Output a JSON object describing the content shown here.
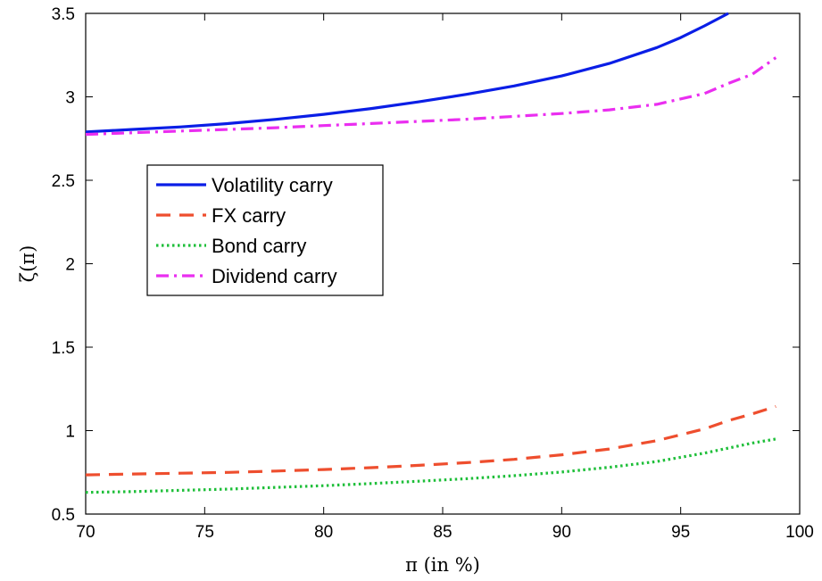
{
  "chart_data": {
    "type": "line",
    "title": "",
    "xlabel": "π (in %)",
    "ylabel": "ζ(π)",
    "xlim": [
      70,
      100
    ],
    "ylim": [
      0.5,
      3.5
    ],
    "xticks": [
      70,
      75,
      80,
      85,
      90,
      95,
      100
    ],
    "yticks": [
      0.5,
      1,
      1.5,
      2,
      2.5,
      3,
      3.5
    ],
    "xtick_labels": [
      "70",
      "75",
      "80",
      "85",
      "90",
      "95",
      "100"
    ],
    "ytick_labels": [
      "0.5",
      "1",
      "1.5",
      "2",
      "2.5",
      "3",
      "3.5"
    ],
    "grid": false,
    "legend_position": "upper-left",
    "series": [
      {
        "name": "Volatility carry",
        "color": "#0a1ee6",
        "style": "solid",
        "x": [
          70,
          72,
          74,
          76,
          78,
          80,
          82,
          84,
          86,
          88,
          90,
          92,
          94,
          95,
          96,
          97
        ],
        "y": [
          2.79,
          2.805,
          2.82,
          2.84,
          2.865,
          2.895,
          2.93,
          2.97,
          3.015,
          3.065,
          3.125,
          3.2,
          3.295,
          3.355,
          3.425,
          3.5
        ]
      },
      {
        "name": "FX carry",
        "color": "#ee4e2e",
        "style": "dashed",
        "x": [
          70,
          72,
          74,
          76,
          78,
          80,
          82,
          84,
          86,
          88,
          90,
          92,
          94,
          96,
          97,
          98,
          99
        ],
        "y": [
          0.735,
          0.74,
          0.745,
          0.75,
          0.758,
          0.767,
          0.778,
          0.792,
          0.808,
          0.828,
          0.855,
          0.89,
          0.94,
          1.01,
          1.06,
          1.1,
          1.145
        ]
      },
      {
        "name": "Bond carry",
        "color": "#1fbf3a",
        "style": "dotted",
        "x": [
          70,
          72,
          74,
          76,
          78,
          80,
          82,
          84,
          86,
          88,
          90,
          92,
          94,
          96,
          97,
          98,
          99
        ],
        "y": [
          0.63,
          0.635,
          0.642,
          0.65,
          0.66,
          0.67,
          0.683,
          0.697,
          0.712,
          0.73,
          0.752,
          0.78,
          0.815,
          0.865,
          0.895,
          0.925,
          0.95
        ]
      },
      {
        "name": "Dividend carry",
        "color": "#ea2ef0",
        "style": "dashdot",
        "x": [
          70,
          72,
          74,
          76,
          78,
          80,
          82,
          84,
          86,
          88,
          90,
          92,
          94,
          96,
          97,
          98,
          99
        ],
        "y": [
          2.775,
          2.785,
          2.795,
          2.805,
          2.815,
          2.828,
          2.84,
          2.853,
          2.866,
          2.883,
          2.9,
          2.922,
          2.955,
          3.02,
          3.08,
          3.135,
          3.235
        ]
      }
    ]
  }
}
